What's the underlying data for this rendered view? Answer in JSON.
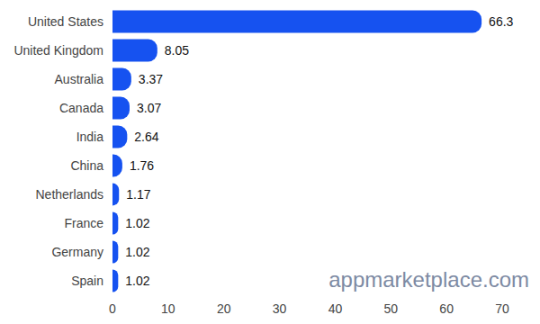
{
  "chart_data": {
    "type": "bar",
    "orientation": "horizontal",
    "categories": [
      "United States",
      "United Kingdom",
      "Australia",
      "Canada",
      "India",
      "China",
      "Netherlands",
      "France",
      "Germany",
      "Spain"
    ],
    "values": [
      66.3,
      8.05,
      3.37,
      3.07,
      2.64,
      1.76,
      1.17,
      1.02,
      1.02,
      1.02
    ],
    "color": "#1652f0",
    "xlim": [
      0,
      70
    ],
    "xticks": [
      0,
      10,
      20,
      30,
      40,
      50,
      60,
      70
    ],
    "grid": false,
    "data_labels": true,
    "annotations": [
      "appmarketplace.com"
    ]
  }
}
